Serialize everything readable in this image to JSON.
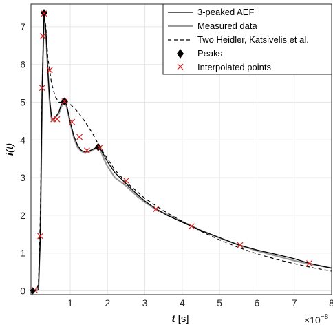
{
  "chart_data": {
    "type": "line",
    "xlabel": {
      "var": "t",
      "unit": " [s]"
    },
    "ylabel": {
      "var": "i",
      "arg": "(t)"
    },
    "x_exponent_label": {
      "base": "×10",
      "exp": "−8"
    },
    "xlim": [
      -0.05,
      8
    ],
    "ylim": [
      -0.1,
      7.6
    ],
    "xticks": [
      1,
      2,
      3,
      4,
      5,
      6,
      7,
      8
    ],
    "yticks": [
      0,
      1,
      2,
      3,
      4,
      5,
      6,
      7
    ],
    "grid": true,
    "legend_position": "top-right",
    "legend": [
      {
        "label": "3-peaked AEF",
        "style": "solid-black"
      },
      {
        "label": "Measured data",
        "style": "solid-gray"
      },
      {
        "label": "Two Heidler, Katsivelis et al.",
        "style": "dashed-black"
      },
      {
        "label": "Peaks",
        "style": "diamond"
      },
      {
        "label": "Interpolated points",
        "style": "cross-red"
      }
    ],
    "series": [
      {
        "name": "3-peaked AEF",
        "x": [
          0,
          0.15,
          0.2,
          0.25,
          0.3,
          0.35,
          0.4,
          0.45,
          0.5,
          0.55,
          0.6,
          0.7,
          0.75,
          0.8,
          0.85,
          0.9,
          1.0,
          1.1,
          1.2,
          1.3,
          1.4,
          1.5,
          1.6,
          1.7,
          1.75,
          1.8,
          1.9,
          2.0,
          2.2,
          2.5,
          2.8,
          3.0,
          3.3,
          3.6,
          4.0,
          4.25,
          4.5,
          5.0,
          5.5,
          6.0,
          6.5,
          7.0,
          7.4,
          7.7,
          8.0
        ],
        "y": [
          0,
          0.02,
          1.4,
          5.4,
          7.36,
          6.9,
          5.85,
          5.1,
          4.6,
          4.55,
          4.58,
          4.75,
          4.9,
          5.0,
          5.02,
          4.95,
          4.48,
          4.1,
          3.85,
          3.72,
          3.68,
          3.7,
          3.75,
          3.8,
          3.81,
          3.78,
          3.6,
          3.42,
          3.13,
          2.84,
          2.55,
          2.38,
          2.17,
          2.0,
          1.82,
          1.71,
          1.6,
          1.41,
          1.22,
          1.08,
          0.97,
          0.85,
          0.73,
          0.66,
          0.6
        ]
      },
      {
        "name": "Measured data",
        "x": [
          0,
          0.15,
          0.2,
          0.25,
          0.3,
          0.35,
          0.4,
          0.45,
          0.5,
          0.55,
          0.6,
          0.7,
          0.75,
          0.8,
          0.85,
          0.9,
          1.0,
          1.1,
          1.2,
          1.3,
          1.4,
          1.5,
          1.6,
          1.7,
          1.75,
          1.8,
          1.9,
          2.0,
          2.2,
          2.5,
          2.8,
          3.0,
          3.3,
          3.6,
          4.0,
          4.25,
          4.5,
          5.0,
          5.5,
          6.0,
          6.5,
          7.0,
          7.4,
          7.7,
          8.0
        ],
        "y": [
          0,
          0.05,
          1.5,
          5.3,
          7.3,
          6.8,
          5.9,
          5.0,
          4.55,
          4.5,
          4.6,
          4.7,
          4.85,
          4.95,
          5.0,
          4.9,
          4.45,
          4.05,
          3.8,
          3.7,
          3.65,
          3.68,
          3.73,
          3.78,
          3.8,
          3.75,
          3.5,
          3.3,
          3.0,
          2.78,
          2.5,
          2.35,
          2.15,
          2.02,
          1.84,
          1.72,
          1.6,
          1.4,
          1.22,
          1.06,
          0.93,
          0.8,
          0.71,
          0.66,
          0.6
        ]
      },
      {
        "name": "Two Heidler, Katsivelis et al.",
        "x": [
          0,
          0.1,
          0.15,
          0.2,
          0.25,
          0.3,
          0.35,
          0.4,
          0.5,
          0.6,
          0.7,
          0.8,
          0.9,
          1.0,
          1.2,
          1.4,
          1.6,
          1.8,
          2.0,
          2.2,
          2.5,
          3.0,
          3.5,
          4.0,
          4.5,
          5.0,
          5.5,
          6.0,
          6.5,
          7.0,
          7.5,
          8.0
        ],
        "y": [
          0,
          0,
          0.2,
          2.0,
          5.5,
          7.35,
          7.0,
          6.2,
          5.5,
          5.15,
          5.0,
          5.0,
          5.0,
          4.95,
          4.75,
          4.48,
          4.17,
          3.8,
          3.5,
          3.2,
          2.88,
          2.45,
          2.12,
          1.84,
          1.58,
          1.35,
          1.15,
          0.98,
          0.84,
          0.72,
          0.61,
          0.52
        ]
      }
    ],
    "peaks": {
      "x": [
        0.3,
        0.85,
        1.75
      ],
      "y": [
        7.36,
        5.02,
        3.81
      ]
    },
    "interpolated_points": {
      "x": [
        0.05,
        0.2,
        0.25,
        0.27,
        0.3,
        0.45,
        0.55,
        0.65,
        0.85,
        1.05,
        1.25,
        1.45,
        1.8,
        2.5,
        3.3,
        4.25,
        5.55,
        7.4
      ],
      "y": [
        0.02,
        1.45,
        5.38,
        6.75,
        7.35,
        5.85,
        4.55,
        4.55,
        5.02,
        4.48,
        4.08,
        3.72,
        3.8,
        2.92,
        2.17,
        1.71,
        1.21,
        0.73
      ]
    },
    "colors": {
      "aef": "#000000",
      "measured": "#9a9a9a",
      "heidler": "#000000",
      "peak": "#000000",
      "interp": "#e02020",
      "grid": "#e6e6e6"
    }
  }
}
